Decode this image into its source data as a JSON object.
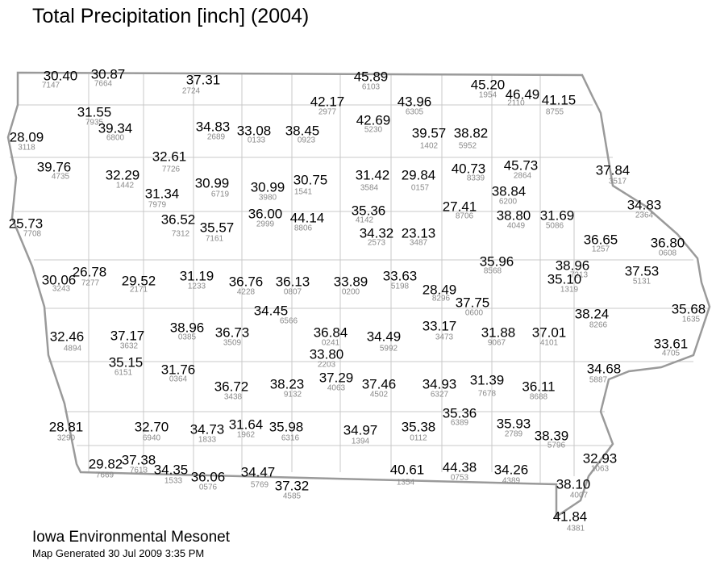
{
  "title": "Total Precipitation [inch] (2004)",
  "stations": [
    {
      "value": "30.40",
      "id": "7147"
    },
    {
      "value": "30.87",
      "id": "7664"
    },
    {
      "value": "37.31",
      "id": "2724"
    },
    {
      "value": "45.89",
      "id": "6103"
    },
    {
      "value": "45.20",
      "id": "1954"
    },
    {
      "value": "46.49",
      "id": "2110"
    },
    {
      "value": "41.15",
      "id": "8755"
    },
    {
      "value": "42.17",
      "id": "2977"
    },
    {
      "value": "43.96",
      "id": "6305"
    },
    {
      "value": "42.69",
      "id": "5230"
    },
    {
      "value": "31.55",
      "id": "7935"
    },
    {
      "value": "39.34",
      "id": "6800"
    },
    {
      "value": "34.83",
      "id": "2689"
    },
    {
      "value": "33.08",
      "id": "0133"
    },
    {
      "value": "38.45",
      "id": "0923"
    },
    {
      "value": "39.57",
      "id": "1402"
    },
    {
      "value": "38.82",
      "id": "5952"
    },
    {
      "value": "28.09",
      "id": "3118"
    },
    {
      "value": "39.76",
      "id": "4735"
    },
    {
      "value": "32.61",
      "id": "7726"
    },
    {
      "value": "32.29",
      "id": "1442"
    },
    {
      "value": "31.34",
      "id": "7979"
    },
    {
      "value": "30.99",
      "id": "6719"
    },
    {
      "value": "30.99",
      "id": "3980"
    },
    {
      "value": "30.75",
      "id": "1541"
    },
    {
      "value": "31.42",
      "id": "3584"
    },
    {
      "value": "29.84",
      "id": "0157"
    },
    {
      "value": "40.73",
      "id": "8339"
    },
    {
      "value": "45.73",
      "id": "2864"
    },
    {
      "value": "37.84",
      "id": "3517"
    },
    {
      "value": "38.84",
      "id": "6200"
    },
    {
      "value": "27.41",
      "id": "8706"
    },
    {
      "value": "38.80",
      "id": "4049"
    },
    {
      "value": "31.69",
      "id": "5086"
    },
    {
      "value": "34.83",
      "id": "2364"
    },
    {
      "value": "25.73",
      "id": "7708"
    },
    {
      "value": "36.52",
      "id": "7312"
    },
    {
      "value": "35.57",
      "id": "7161"
    },
    {
      "value": "36.00",
      "id": "2999"
    },
    {
      "value": "44.14",
      "id": "8806"
    },
    {
      "value": "35.36",
      "id": "4142"
    },
    {
      "value": "34.32",
      "id": "2573"
    },
    {
      "value": "23.13",
      "id": "3487"
    },
    {
      "value": "36.65",
      "id": "1257"
    },
    {
      "value": "36.80",
      "id": "0608"
    },
    {
      "value": "30.06",
      "id": "3243"
    },
    {
      "value": "26.78",
      "id": "7277"
    },
    {
      "value": "29.52",
      "id": "2171"
    },
    {
      "value": "31.19",
      "id": "1233"
    },
    {
      "value": "36.76",
      "id": "4228"
    },
    {
      "value": "36.13",
      "id": "0807"
    },
    {
      "value": "33.89",
      "id": "0200"
    },
    {
      "value": "33.63",
      "id": "5198"
    },
    {
      "value": "35.96",
      "id": "8568"
    },
    {
      "value": "38.96",
      "id": "7213"
    },
    {
      "value": "37.53",
      "id": "5131"
    },
    {
      "value": "35.10",
      "id": "1319"
    },
    {
      "value": "28.49",
      "id": "8296"
    },
    {
      "value": "37.75",
      "id": "0600"
    },
    {
      "value": "34.45",
      "id": "6566"
    },
    {
      "value": "38.24",
      "id": "8266"
    },
    {
      "value": "35.68",
      "id": "1635"
    },
    {
      "value": "32.46",
      "id": "4894"
    },
    {
      "value": "37.17",
      "id": "3632"
    },
    {
      "value": "38.96",
      "id": "0385"
    },
    {
      "value": "36.73",
      "id": "3509"
    },
    {
      "value": "36.84",
      "id": "0241"
    },
    {
      "value": "34.49",
      "id": "5992"
    },
    {
      "value": "33.17",
      "id": "3473"
    },
    {
      "value": "31.88",
      "id": "9067"
    },
    {
      "value": "37.01",
      "id": "4101"
    },
    {
      "value": "33.61",
      "id": "4705"
    },
    {
      "value": "33.80",
      "id": "2203"
    },
    {
      "value": "35.15",
      "id": "6151"
    },
    {
      "value": "31.76",
      "id": "0364"
    },
    {
      "value": "36.72",
      "id": "3438"
    },
    {
      "value": "38.23",
      "id": "9132"
    },
    {
      "value": "37.29",
      "id": "4063"
    },
    {
      "value": "37.46",
      "id": "4502"
    },
    {
      "value": "34.93",
      "id": "6327"
    },
    {
      "value": "31.39",
      "id": "7678"
    },
    {
      "value": "36.11",
      "id": "8688"
    },
    {
      "value": "34.68",
      "id": "5887"
    },
    {
      "value": "28.81",
      "id": "3290"
    },
    {
      "value": "32.70",
      "id": "6940"
    },
    {
      "value": "34.73",
      "id": "1833"
    },
    {
      "value": "31.64",
      "id": "1962"
    },
    {
      "value": "35.98",
      "id": "6316"
    },
    {
      "value": "34.97",
      "id": "1394"
    },
    {
      "value": "35.38",
      "id": "0112"
    },
    {
      "value": "35.36",
      "id": "6389"
    },
    {
      "value": "35.93",
      "id": "2789"
    },
    {
      "value": "38.39",
      "id": "5796"
    },
    {
      "value": "32.93",
      "id": "1063"
    },
    {
      "value": "29.82",
      "id": "7669"
    },
    {
      "value": "37.38",
      "id": "7613"
    },
    {
      "value": "34.35",
      "id": "1533"
    },
    {
      "value": "36.06",
      "id": "0576"
    },
    {
      "value": "34.47",
      "id": "5769"
    },
    {
      "value": "37.32",
      "id": "4585"
    },
    {
      "value": "40.61",
      "id": "1354"
    },
    {
      "value": "44.38",
      "id": "0753"
    },
    {
      "value": "34.26",
      "id": "4389"
    },
    {
      "value": "38.10",
      "id": "4007"
    },
    {
      "value": "41.84",
      "id": "4381"
    }
  ],
  "footer": {
    "source": "Iowa Environmental Mesonet",
    "generated": "Map Generated 30 Jul 2009 3:35 PM"
  }
}
